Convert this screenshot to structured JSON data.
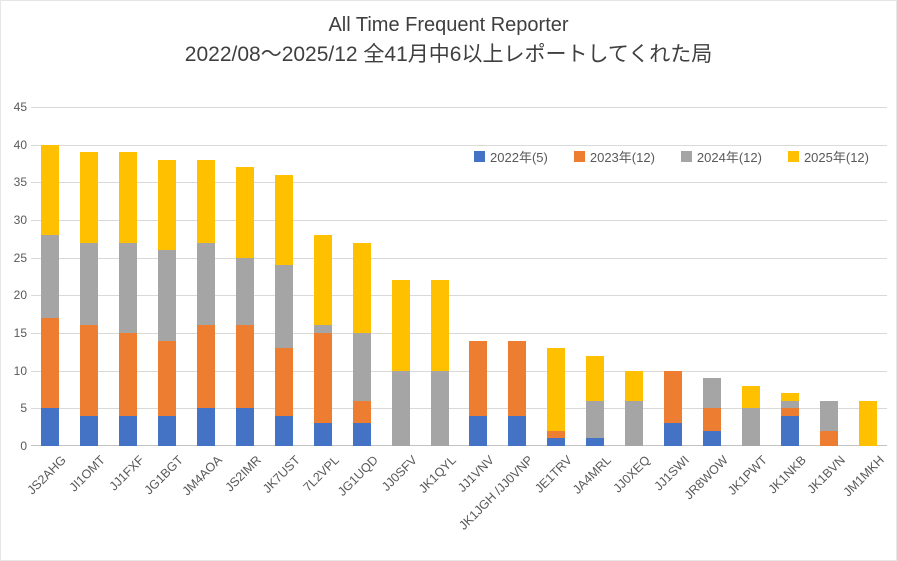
{
  "title": "All Time Frequent Reporter",
  "subtitle": "2022/08～2025/12 全41月中6以上レポートしてくれた局",
  "colors": {
    "series_2022": "#4472C4",
    "series_2023": "#ED7D31",
    "series_2024": "#A5A5A5",
    "series_2025": "#FFC000",
    "gridline": "#D9D9D9",
    "text": "#595959",
    "title_text": "#3F3F3F",
    "background": "#FFFFFF"
  },
  "chart_data": {
    "type": "bar",
    "stacked": true,
    "title": "All Time Frequent Reporter",
    "subtitle": "2022/08～2025/12 全41月中6以上レポートしてくれた局",
    "xlabel": "",
    "ylabel": "",
    "ylim": [
      0,
      45
    ],
    "yticks": [
      0,
      5,
      10,
      15,
      20,
      25,
      30,
      35,
      40,
      45
    ],
    "grid": true,
    "legend_position": "top-right-inside",
    "categories": [
      "JS2AHG",
      "JI1OMT",
      "JJ1FXF",
      "JG1BGT",
      "JM4AOA",
      "JS2IMR",
      "JK7UST",
      "7L2VPL",
      "JG1UQD",
      "JJ0SFV",
      "JK1QYL",
      "JJ1VNV",
      "JK1JGH /JJ0VNP",
      "JE1TRV",
      "JA4MRL",
      "JJ0XEQ",
      "JJ1SWI",
      "JR8WOW",
      "JK1PWT",
      "JK1NKB",
      "JK1BVN",
      "JM1MKH"
    ],
    "series": [
      {
        "name": "2022年(5)",
        "color": "#4472C4",
        "values": [
          5,
          4,
          4,
          4,
          5,
          5,
          4,
          3,
          3,
          0,
          0,
          4,
          4,
          1,
          1,
          0,
          3,
          2,
          0,
          4,
          0,
          0
        ]
      },
      {
        "name": "2023年(12)",
        "color": "#ED7D31",
        "values": [
          12,
          12,
          11,
          10,
          11,
          11,
          9,
          12,
          3,
          0,
          0,
          10,
          10,
          1,
          0,
          0,
          7,
          3,
          0,
          1,
          2,
          0
        ]
      },
      {
        "name": "2024年(12)",
        "color": "#A5A5A5",
        "values": [
          11,
          11,
          12,
          12,
          11,
          9,
          11,
          1,
          9,
          10,
          10,
          0,
          0,
          0,
          5,
          6,
          0,
          4,
          5,
          1,
          4,
          0
        ]
      },
      {
        "name": "2025年(12)",
        "color": "#FFC000",
        "values": [
          12,
          12,
          12,
          12,
          11,
          12,
          12,
          12,
          12,
          12,
          12,
          0,
          0,
          11,
          6,
          4,
          0,
          0,
          3,
          1,
          0,
          6
        ]
      }
    ],
    "totals": [
      40,
      39,
      39,
      38,
      38,
      37,
      36,
      28,
      27,
      22,
      22,
      14,
      14,
      13,
      12,
      10,
      10,
      9,
      8,
      7,
      6,
      6
    ]
  }
}
